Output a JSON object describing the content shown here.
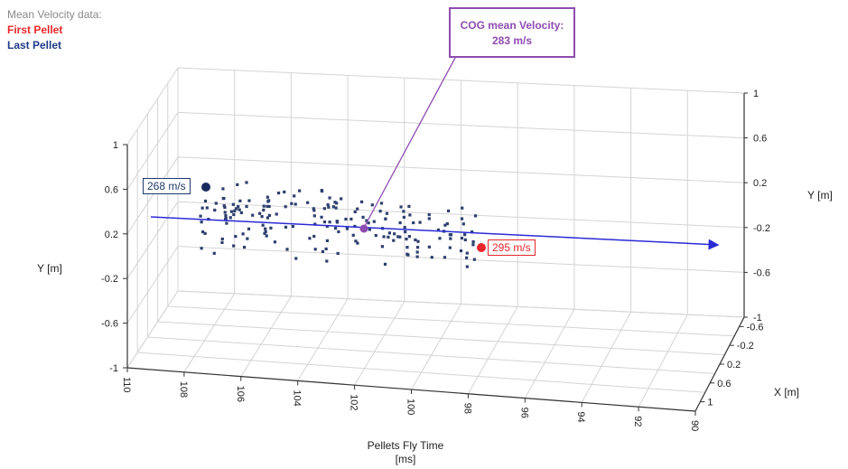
{
  "legend": {
    "title": "Mean Velocity data:",
    "first_pellet": "First Pellet",
    "last_pellet": "Last Pellet"
  },
  "callout": {
    "line1": "COG mean Velocity:",
    "line2": "283 m/s"
  },
  "tags": {
    "last": "268 m/s",
    "first": "295 m/s"
  },
  "colors": {
    "first": "#e8262a",
    "last": "#1f3a6a",
    "cog": "#8e4cb0",
    "trend": "#2b2bd6",
    "points": "#2d3f6e"
  },
  "chart_data": {
    "type": "scatter",
    "projection": "3d",
    "xlabel": "Pellets Fly Time\n[ms]",
    "ylabel_left": "Y [m]",
    "ylabel_right": "Y [m]",
    "zlabel": "X [m]",
    "time_ticks": [
      "110",
      "108",
      "106",
      "104",
      "102",
      "100",
      "98",
      "96",
      "94",
      "92",
      "90"
    ],
    "y_ticks_left": [
      "1",
      "0.6",
      "0.2",
      "-0.2",
      "-0.6",
      "-1"
    ],
    "y_ticks_right": [
      "1",
      "0.6",
      "0.2",
      "-0.2",
      "-0.6",
      "-1"
    ],
    "x_ticks": [
      "-0.6",
      "-0.2",
      "0.2",
      "0.6",
      "1"
    ],
    "time_range": [
      110,
      90
    ],
    "y_range": [
      -1,
      1
    ],
    "grid": true,
    "first_pellet_velocity": "295 m/s",
    "last_pellet_velocity": "268 m/s",
    "cog_mean_velocity": "283 m/s"
  }
}
